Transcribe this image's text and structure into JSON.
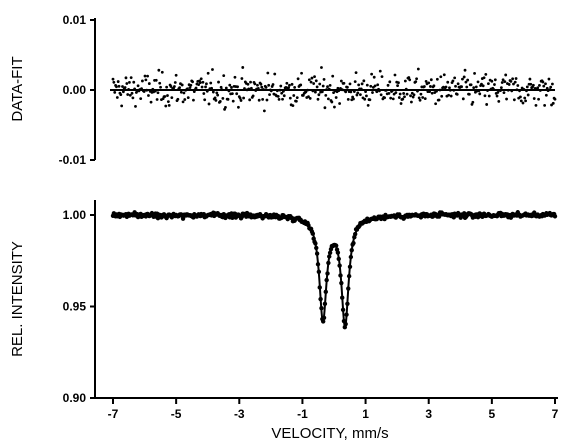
{
  "chart_data": [
    {
      "type": "scatter",
      "panel": "residuals",
      "ylabel": "DATA-FIT",
      "xlim": [
        -7,
        7
      ],
      "ylim": [
        -0.01,
        0.01
      ],
      "yticks": [
        0.01,
        0.0,
        -0.01
      ],
      "ytick_labels": [
        "0.01",
        "0.00",
        "-0.01"
      ],
      "zero_line": true,
      "noise_amplitude": 0.003,
      "n_points": 512,
      "color": "#000000"
    },
    {
      "type": "scatter",
      "panel": "spectrum",
      "ylabel": "REL. INTENSITY",
      "xlabel": "VELOCITY,  mm/s",
      "xlim": [
        -7,
        7
      ],
      "ylim": [
        0.9,
        1.0
      ],
      "xticks": [
        -7,
        -5,
        -3,
        -1,
        1,
        3,
        5,
        7
      ],
      "xtick_labels": [
        "-7",
        "-5",
        "-3",
        "-1",
        "1",
        "3",
        "5",
        "7"
      ],
      "yticks": [
        1.0,
        0.95,
        0.9
      ],
      "ytick_labels": [
        "1.00",
        "0.95",
        "0.90"
      ],
      "baseline": 1.0,
      "peaks": [
        {
          "center": -0.35,
          "min": 0.944
        },
        {
          "center": 0.35,
          "min": 0.941
        }
      ],
      "linewidth_mm_s": 0.28,
      "fit_line": true,
      "n_points": 512,
      "color": "#000000"
    }
  ]
}
